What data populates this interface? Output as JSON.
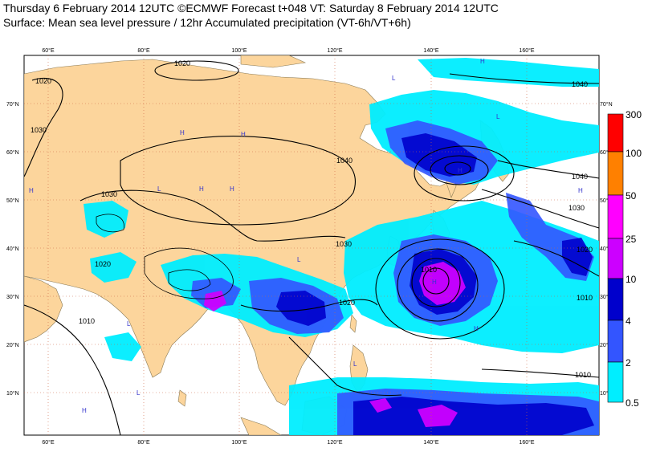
{
  "title": {
    "line1": "Thursday 6 February 2014 12UTC ©ECMWF Forecast t+048 VT: Saturday 8 February 2014 12UTC",
    "line2": "Surface: Mean sea level pressure / 12hr Accumulated precipitation (VT-6h/VT+6h)"
  },
  "map": {
    "lon_labels": [
      "60°E",
      "80°E",
      "100°E",
      "120°E",
      "140°E",
      "160°E"
    ],
    "lat_labels": [
      "70°N",
      "60°N",
      "50°N",
      "40°N",
      "30°N",
      "20°N",
      "10°N"
    ],
    "pressure_labels": [
      "1020",
      "1020",
      "1030",
      "1040",
      "1040",
      "1030",
      "1020",
      "1010",
      "1030",
      "1040",
      "1030",
      "1020",
      "1020",
      "1010",
      "1010",
      "1010"
    ],
    "high_marker": "H",
    "low_marker": "L"
  },
  "colorbar": {
    "levels": [
      "300",
      "100",
      "50",
      "25",
      "10",
      "4",
      "2",
      "0.5"
    ],
    "colors": [
      "#ff0000",
      "#ff8000",
      "#ff00ff",
      "#cc00ff",
      "#0000cc",
      "#3355ff",
      "#00aaff",
      "#00eeff"
    ]
  },
  "colors": {
    "land": "#fcd59c",
    "sea": "#ffffff",
    "precip_light": "#00eeff",
    "precip_mid": "#00aaff",
    "precip_heavy": "#0000cc",
    "precip_very_heavy": "#cc00ff",
    "isobar": "#000000",
    "pressure_center": "#3333cc",
    "graticule": "#cc6644"
  }
}
